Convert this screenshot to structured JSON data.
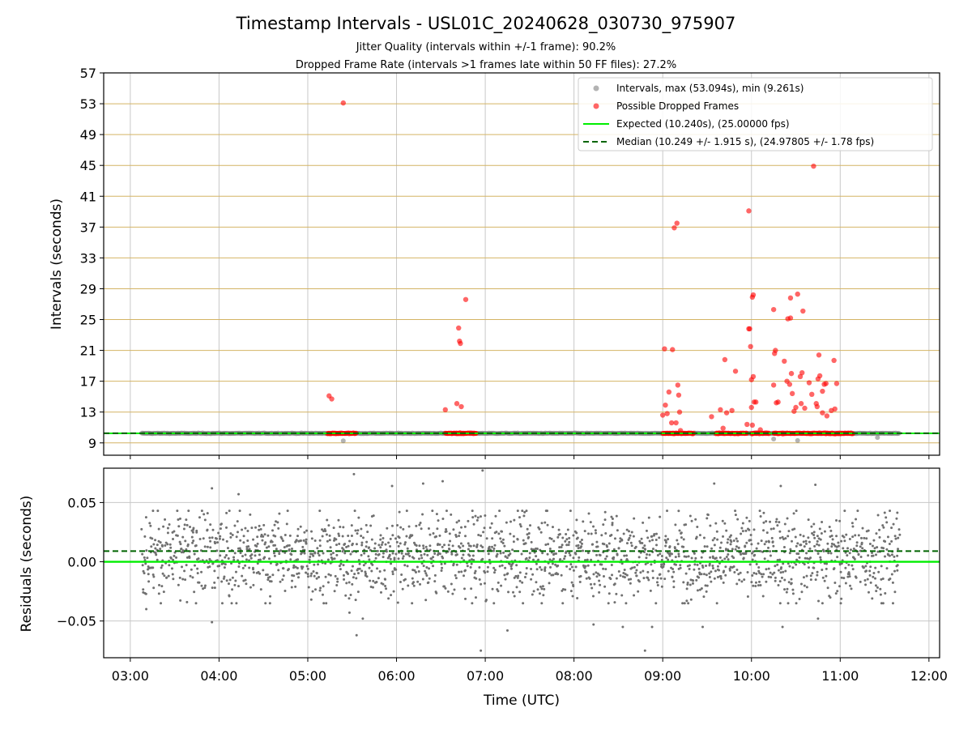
{
  "chart_data": {
    "title": "Timestamp Intervals - USL01C_20240628_030730_975907",
    "subtitle_lines": [
      "Jitter Quality (intervals within +/-1 frame): 90.2%",
      "Dropped Frame Rate (intervals >1 frames late within 50 FF files): 27.2%"
    ],
    "xlabel": "Time (UTC)",
    "x_tick_labels": [
      "03:00",
      "04:00",
      "05:00",
      "06:00",
      "07:00",
      "08:00",
      "09:00",
      "10:00",
      "11:00",
      "12:00"
    ],
    "xlim_hours": [
      2.7,
      12.12
    ],
    "panels": [
      {
        "type": "scatter",
        "ylabel": "Intervals (seconds)",
        "ylim": [
          7.4,
          57
        ],
        "y_ticks": [
          9,
          13,
          17,
          21,
          25,
          29,
          33,
          37,
          41,
          45,
          49,
          53,
          57
        ],
        "y_tick_labels": [
          "9",
          "13",
          "17",
          "21",
          "25",
          "29",
          "33",
          "37",
          "41",
          "45",
          "49",
          "53",
          "57"
        ],
        "hline_color": "#d4b464",
        "legend_position": "upper right",
        "legend": [
          {
            "label": "Intervals, max (53.094s), min (9.261s)",
            "marker": "circle",
            "color": "#808080"
          },
          {
            "label": "Possible Dropped Frames",
            "marker": "circle",
            "color": "#ff0000"
          },
          {
            "label": "Expected (10.240s), (25.00000 fps)",
            "marker": "line",
            "color": "#00ee00"
          },
          {
            "label": "Median (10.249 +/- 1.915 s), (24.97805 +/- 1.78 fps)",
            "marker": "dashed",
            "color": "#006400"
          }
        ],
        "expected_line": 10.24,
        "median_line": 10.249,
        "interval_series": {
          "name": "Intervals, max (53.094s), min (9.261s)",
          "baseline_value": 10.24,
          "time_range_hours": [
            3.13,
            11.67
          ],
          "outliers": [
            {
              "t": 5.4,
              "y": 9.26
            },
            {
              "t": 10.25,
              "y": 9.5
            },
            {
              "t": 10.52,
              "y": 9.3
            },
            {
              "t": 11.42,
              "y": 9.7
            }
          ]
        },
        "dropped_series": {
          "name": "Possible Dropped Frames",
          "baseline_clusters_hours": [
            [
              5.22,
              5.55
            ],
            [
              6.55,
              6.9
            ],
            [
              9.0,
              9.35
            ],
            [
              9.6,
              9.95
            ],
            [
              10.0,
              10.2
            ],
            [
              10.25,
              11.15
            ]
          ],
          "points": [
            {
              "t": 5.24,
              "y": 15.1
            },
            {
              "t": 5.27,
              "y": 14.7
            },
            {
              "t": 5.4,
              "y": 53.1
            },
            {
              "t": 6.55,
              "y": 13.3
            },
            {
              "t": 6.68,
              "y": 14.1
            },
            {
              "t": 6.7,
              "y": 23.9
            },
            {
              "t": 6.71,
              "y": 22.2
            },
            {
              "t": 6.72,
              "y": 21.9
            },
            {
              "t": 6.73,
              "y": 13.7
            },
            {
              "t": 6.78,
              "y": 27.6
            },
            {
              "t": 9.0,
              "y": 12.6
            },
            {
              "t": 9.02,
              "y": 21.2
            },
            {
              "t": 9.03,
              "y": 13.9
            },
            {
              "t": 9.05,
              "y": 12.8
            },
            {
              "t": 9.07,
              "y": 15.6
            },
            {
              "t": 9.1,
              "y": 11.6
            },
            {
              "t": 9.11,
              "y": 21.1
            },
            {
              "t": 9.13,
              "y": 36.9
            },
            {
              "t": 9.15,
              "y": 11.6
            },
            {
              "t": 9.16,
              "y": 37.5
            },
            {
              "t": 9.17,
              "y": 16.5
            },
            {
              "t": 9.18,
              "y": 15.2
            },
            {
              "t": 9.19,
              "y": 13.0
            },
            {
              "t": 9.2,
              "y": 10.6
            },
            {
              "t": 9.55,
              "y": 12.4
            },
            {
              "t": 9.65,
              "y": 13.3
            },
            {
              "t": 9.68,
              "y": 10.9
            },
            {
              "t": 9.7,
              "y": 19.8
            },
            {
              "t": 9.72,
              "y": 12.9
            },
            {
              "t": 9.78,
              "y": 13.2
            },
            {
              "t": 9.82,
              "y": 18.3
            },
            {
              "t": 9.97,
              "y": 39.1
            },
            {
              "t": 9.95,
              "y": 11.4
            },
            {
              "t": 9.97,
              "y": 23.8
            },
            {
              "t": 9.98,
              "y": 23.8
            },
            {
              "t": 9.99,
              "y": 21.5
            },
            {
              "t": 10.0,
              "y": 17.2
            },
            {
              "t": 10.01,
              "y": 27.9
            },
            {
              "t": 10.02,
              "y": 28.2
            },
            {
              "t": 10.02,
              "y": 17.6
            },
            {
              "t": 10.0,
              "y": 13.6
            },
            {
              "t": 10.01,
              "y": 11.3
            },
            {
              "t": 10.03,
              "y": 14.3
            },
            {
              "t": 10.05,
              "y": 14.3
            },
            {
              "t": 10.1,
              "y": 10.7
            },
            {
              "t": 10.25,
              "y": 26.3
            },
            {
              "t": 10.25,
              "y": 16.5
            },
            {
              "t": 10.26,
              "y": 20.6
            },
            {
              "t": 10.27,
              "y": 21.0
            },
            {
              "t": 10.28,
              "y": 14.2
            },
            {
              "t": 10.3,
              "y": 14.3
            },
            {
              "t": 10.37,
              "y": 19.6
            },
            {
              "t": 10.4,
              "y": 17.0
            },
            {
              "t": 10.41,
              "y": 25.1
            },
            {
              "t": 10.43,
              "y": 16.6
            },
            {
              "t": 10.44,
              "y": 25.2
            },
            {
              "t": 10.44,
              "y": 27.8
            },
            {
              "t": 10.45,
              "y": 18.0
            },
            {
              "t": 10.46,
              "y": 15.4
            },
            {
              "t": 10.48,
              "y": 13.1
            },
            {
              "t": 10.5,
              "y": 13.6
            },
            {
              "t": 10.52,
              "y": 28.3
            },
            {
              "t": 10.55,
              "y": 17.6
            },
            {
              "t": 10.56,
              "y": 14.1
            },
            {
              "t": 10.57,
              "y": 18.1
            },
            {
              "t": 10.58,
              "y": 26.1
            },
            {
              "t": 10.6,
              "y": 13.5
            },
            {
              "t": 10.65,
              "y": 16.8
            },
            {
              "t": 10.68,
              "y": 15.3
            },
            {
              "t": 10.7,
              "y": 44.9
            },
            {
              "t": 10.73,
              "y": 14.1
            },
            {
              "t": 10.74,
              "y": 13.7
            },
            {
              "t": 10.75,
              "y": 17.3
            },
            {
              "t": 10.76,
              "y": 20.4
            },
            {
              "t": 10.77,
              "y": 17.7
            },
            {
              "t": 10.8,
              "y": 15.7
            },
            {
              "t": 10.8,
              "y": 12.9
            },
            {
              "t": 10.82,
              "y": 16.6
            },
            {
              "t": 10.84,
              "y": 16.7
            },
            {
              "t": 10.85,
              "y": 12.5
            },
            {
              "t": 10.9,
              "y": 13.2
            },
            {
              "t": 10.93,
              "y": 19.7
            },
            {
              "t": 10.94,
              "y": 13.4
            },
            {
              "t": 10.96,
              "y": 16.7
            }
          ]
        }
      },
      {
        "type": "scatter",
        "ylabel": "Residuals (seconds)",
        "ylim": [
          -0.081,
          0.079
        ],
        "y_ticks": [
          -0.05,
          0.0,
          0.05
        ],
        "y_tick_labels": [
          "−0.05",
          "0.00",
          "0.05"
        ],
        "zero_line": 0.0,
        "median_residual": 0.009,
        "residual_series": {
          "color": "#707070",
          "time_range_hours": [
            3.13,
            11.67
          ],
          "core_spread": [
            -0.03,
            0.04
          ],
          "extreme_points": [
            {
              "t": 3.18,
              "y": -0.04
            },
            {
              "t": 3.92,
              "y": -0.051
            },
            {
              "t": 3.92,
              "y": 0.062
            },
            {
              "t": 4.22,
              "y": 0.057
            },
            {
              "t": 5.47,
              "y": -0.043
            },
            {
              "t": 5.52,
              "y": 0.074
            },
            {
              "t": 5.55,
              "y": -0.062
            },
            {
              "t": 5.62,
              "y": -0.048
            },
            {
              "t": 5.95,
              "y": 0.064
            },
            {
              "t": 6.3,
              "y": 0.066
            },
            {
              "t": 6.52,
              "y": 0.068
            },
            {
              "t": 6.97,
              "y": 0.077
            },
            {
              "t": 6.95,
              "y": -0.075
            },
            {
              "t": 7.25,
              "y": -0.058
            },
            {
              "t": 8.22,
              "y": -0.053
            },
            {
              "t": 8.55,
              "y": -0.055
            },
            {
              "t": 8.8,
              "y": -0.075
            },
            {
              "t": 8.88,
              "y": -0.055
            },
            {
              "t": 9.58,
              "y": 0.066
            },
            {
              "t": 9.45,
              "y": -0.055
            },
            {
              "t": 10.33,
              "y": 0.064
            },
            {
              "t": 10.35,
              "y": -0.055
            },
            {
              "t": 10.72,
              "y": 0.065
            },
            {
              "t": 10.75,
              "y": -0.048
            }
          ]
        }
      }
    ]
  }
}
